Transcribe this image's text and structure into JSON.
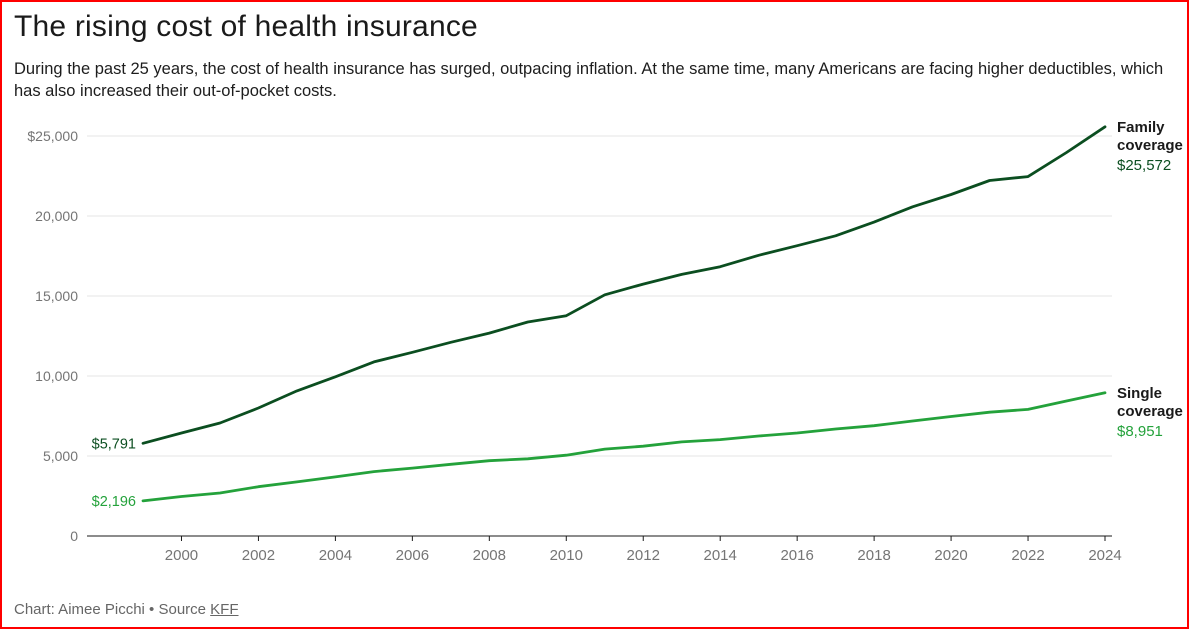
{
  "frame": {
    "border_color": "#ff0000",
    "background": "#ffffff"
  },
  "header": {
    "title": "The rising cost of health insurance",
    "subtitle": "During the past 25 years, the cost of health insurance has surged, outpacing inflation. At the same time, many Americans are facing higher deductibles, which has also increased their out-of-pocket costs."
  },
  "chart_data": {
    "type": "line",
    "title": "The rising cost of health insurance",
    "x": [
      1999,
      2000,
      2001,
      2002,
      2003,
      2004,
      2005,
      2006,
      2007,
      2008,
      2009,
      2010,
      2011,
      2012,
      2013,
      2014,
      2015,
      2016,
      2017,
      2018,
      2019,
      2020,
      2021,
      2022,
      2023,
      2024
    ],
    "series": [
      {
        "name": "Family coverage",
        "color": "#0b4e20",
        "start_label": "$5,791",
        "end_label": "$25,572",
        "values": [
          5791,
          6438,
          7061,
          8003,
          9068,
          9950,
          10880,
          11480,
          12106,
          12680,
          13375,
          13770,
          15073,
          15745,
          16351,
          16834,
          17545,
          18142,
          18764,
          19616,
          20576,
          21342,
          22221,
          22463,
          23968,
          25572
        ]
      },
      {
        "name": "Single coverage",
        "color": "#24a23b",
        "start_label": "$2,196",
        "end_label": "$8,951",
        "values": [
          2196,
          2471,
          2689,
          3083,
          3383,
          3695,
          4024,
          4242,
          4479,
          4704,
          4824,
          5049,
          5429,
          5615,
          5884,
          6025,
          6251,
          6435,
          6690,
          6896,
          7188,
          7470,
          7739,
          7911,
          8435,
          8951
        ]
      }
    ],
    "ylim": [
      0,
      25572
    ],
    "xlim": [
      1999,
      2024
    ],
    "grid": "horizontal",
    "legend_position": "end-of-line-labels",
    "y_ticks": {
      "values": [
        25000,
        20000,
        15000,
        10000,
        5000,
        0
      ],
      "labels": [
        "$25,000",
        "20,000",
        "15,000",
        "10,000",
        "5,000",
        "0"
      ]
    },
    "x_ticks": {
      "values": [
        2000,
        2002,
        2004,
        2006,
        2008,
        2010,
        2012,
        2014,
        2016,
        2018,
        2020,
        2022,
        2024
      ],
      "labels": [
        "2000",
        "2002",
        "2004",
        "2006",
        "2008",
        "2010",
        "2012",
        "2014",
        "2016",
        "2018",
        "2020",
        "2022",
        "2024"
      ]
    },
    "text_colors": {
      "axis_label": "#757575",
      "series_name_label": "#1a1a1a"
    }
  },
  "footer": {
    "credit": "Chart: Aimee Picchi • Source ",
    "source_link": "KFF"
  }
}
